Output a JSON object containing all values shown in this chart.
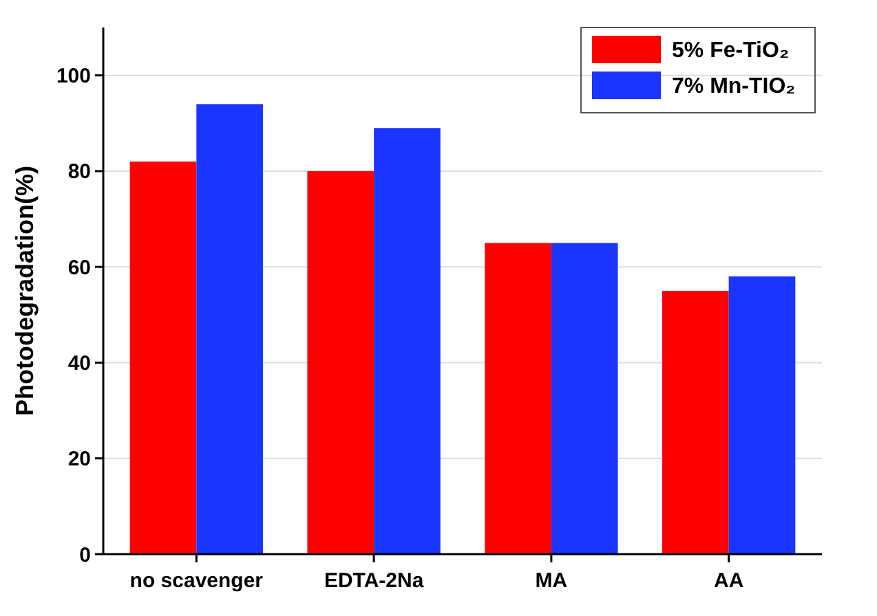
{
  "chart_data": {
    "type": "bar",
    "ylabel": "Photodegradation(%)",
    "categories": [
      "no scavenger",
      "EDTA-2Na",
      "MA",
      "AA"
    ],
    "series": [
      {
        "name": "5% Fe-TiO₂",
        "color": "#ff0000",
        "values": [
          82,
          80,
          65,
          55
        ]
      },
      {
        "name": "7% Mn-TIO₂",
        "color": "#1a35ff",
        "values": [
          94,
          89,
          65,
          58
        ]
      }
    ],
    "ylim": [
      0,
      110
    ],
    "yticks": [
      0,
      20,
      40,
      60,
      80,
      100
    ],
    "grid": "y",
    "legend": "top right"
  }
}
